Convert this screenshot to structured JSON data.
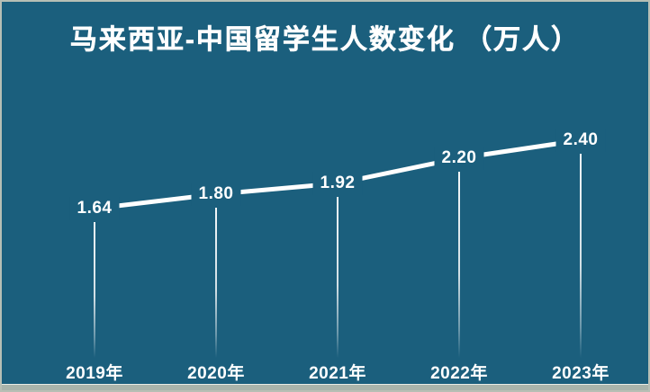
{
  "title": "马来西亚-中国留学生人数变化 （万人）",
  "colors": {
    "background": "#1b5f7d",
    "line": "#ffffff",
    "text": "#ffffff",
    "frame_border": "#b7bfb5",
    "bottom_strip": "#a9b4ab"
  },
  "chart_data": {
    "type": "line",
    "title": "马来西亚-中国留学生人数变化 （万人）",
    "categories": [
      "2019年",
      "2020年",
      "2021年",
      "2022年",
      "2023年"
    ],
    "values": [
      1.64,
      1.8,
      1.92,
      2.2,
      2.4
    ],
    "point_labels": [
      "1.64",
      "1.80",
      "1.92",
      "2.20",
      "2.40"
    ],
    "xlabel": "",
    "ylabel": "",
    "ylim": [
      0,
      2.9
    ],
    "grid": false,
    "legend": false,
    "style": "lollipop-line, point value labels inline on line, stems fade to transparent toward baseline"
  }
}
